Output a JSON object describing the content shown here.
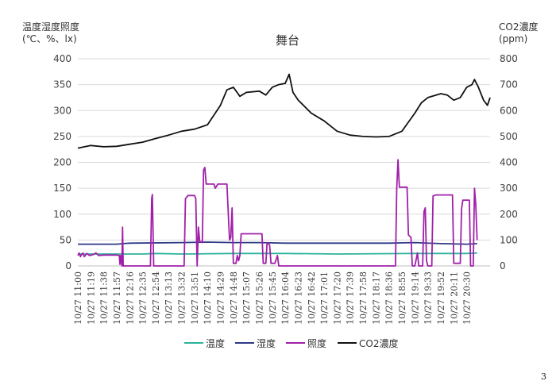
{
  "chart_data": {
    "type": "line",
    "title": "舞台",
    "left_axis_label_line1": "温度湿度照度",
    "left_axis_label_line2": "(℃、%、lx)",
    "right_axis_label_line1": "CO2濃度",
    "right_axis_label_line2": "(ppm)",
    "ylim_left": [
      0,
      400
    ],
    "ylim_right": [
      0,
      800
    ],
    "yticks_left": [
      0,
      50,
      100,
      150,
      200,
      250,
      300,
      350,
      400
    ],
    "yticks_right": [
      0,
      100,
      200,
      300,
      400,
      500,
      600,
      700,
      800
    ],
    "grid": "horizontal",
    "legend_position": "bottom",
    "x_categories": [
      "10/27 11:00",
      "10/27 11:19",
      "10/27 11:38",
      "10/27 11:57",
      "10/27 12:16",
      "10/27 12:35",
      "10/27 12:54",
      "10/27 13:13",
      "10/27 13:32",
      "10/27 13:51",
      "10/27 14:10",
      "10/27 14:29",
      "10/27 14:48",
      "10/27 15:07",
      "10/27 15:26",
      "10/27 15:45",
      "10/27 16:04",
      "10/27 16:23",
      "10/27 16:42",
      "10/27 17:01",
      "10/27 17:20",
      "10/27 17:39",
      "10/27 17:58",
      "10/27 18:17",
      "10/27 18:36",
      "10/27 18:55",
      "10/27 19:14",
      "10/27 19:33",
      "10/27 19:52",
      "10/27 20:11",
      "10/27 20:30"
    ],
    "series": [
      {
        "name": "温度",
        "color": "#2BB39A",
        "axis": "left",
        "points": [
          [
            0,
            23
          ],
          [
            5,
            23
          ],
          [
            6,
            24
          ],
          [
            8,
            23
          ],
          [
            12,
            24
          ],
          [
            16,
            24
          ],
          [
            20,
            23
          ],
          [
            26,
            24
          ],
          [
            30,
            24
          ],
          [
            30.8,
            25
          ]
        ]
      },
      {
        "name": "湿度",
        "color": "#2E3A87",
        "axis": "left",
        "points": [
          [
            0,
            42
          ],
          [
            3,
            42
          ],
          [
            3.5,
            43
          ],
          [
            4,
            44
          ],
          [
            8,
            45
          ],
          [
            10,
            46
          ],
          [
            12,
            45
          ],
          [
            14,
            45
          ],
          [
            16,
            44
          ],
          [
            20,
            44
          ],
          [
            24,
            44
          ],
          [
            26,
            45
          ],
          [
            28,
            43
          ],
          [
            30,
            42
          ],
          [
            30.8,
            43
          ]
        ]
      },
      {
        "name": "照度",
        "color": "#A020A8",
        "axis": "left",
        "points": [
          [
            0,
            20
          ],
          [
            0.1,
            25
          ],
          [
            0.2,
            18
          ],
          [
            0.3,
            22
          ],
          [
            0.4,
            25
          ],
          [
            0.5,
            18
          ],
          [
            0.7,
            24
          ],
          [
            0.9,
            20
          ],
          [
            1.2,
            22
          ],
          [
            1.4,
            25
          ],
          [
            1.6,
            20
          ],
          [
            2,
            21
          ],
          [
            3,
            21
          ],
          [
            3.2,
            20
          ],
          [
            3.25,
            3
          ],
          [
            3.3,
            20
          ],
          [
            3.4,
            0
          ],
          [
            3.45,
            75
          ],
          [
            3.5,
            0
          ],
          [
            3.6,
            0
          ],
          [
            5.6,
            0
          ],
          [
            5.7,
            130
          ],
          [
            5.75,
            138
          ],
          [
            5.85,
            0
          ],
          [
            6,
            0
          ],
          [
            8,
            0
          ],
          [
            8.2,
            0
          ],
          [
            8.3,
            130
          ],
          [
            8.5,
            136
          ],
          [
            9,
            136
          ],
          [
            9.1,
            130
          ],
          [
            9.2,
            0
          ],
          [
            9.3,
            75
          ],
          [
            9.4,
            48
          ],
          [
            9.6,
            45
          ],
          [
            9.7,
            185
          ],
          [
            9.8,
            190
          ],
          [
            9.9,
            158
          ],
          [
            10.5,
            158
          ],
          [
            10.6,
            150
          ],
          [
            10.8,
            158
          ],
          [
            11.5,
            158
          ],
          [
            11.7,
            50
          ],
          [
            11.8,
            55
          ],
          [
            11.9,
            112
          ],
          [
            12,
            5
          ],
          [
            12.2,
            5
          ],
          [
            12.3,
            20
          ],
          [
            12.4,
            10
          ],
          [
            12.5,
            20
          ],
          [
            12.6,
            62
          ],
          [
            13.3,
            62
          ],
          [
            14.2,
            62
          ],
          [
            14.3,
            5
          ],
          [
            14.5,
            5
          ],
          [
            14.6,
            45
          ],
          [
            14.8,
            40
          ],
          [
            14.9,
            5
          ],
          [
            15.2,
            5
          ],
          [
            15.4,
            20
          ],
          [
            15.5,
            0
          ],
          [
            16,
            0
          ],
          [
            20,
            0
          ],
          [
            24.5,
            0
          ],
          [
            24.6,
            150
          ],
          [
            24.7,
            205
          ],
          [
            24.8,
            152
          ],
          [
            25.4,
            152
          ],
          [
            25.5,
            60
          ],
          [
            25.7,
            55
          ],
          [
            25.8,
            0
          ],
          [
            26,
            0
          ],
          [
            26.2,
            25
          ],
          [
            26.3,
            0
          ],
          [
            26.6,
            0
          ],
          [
            26.7,
            105
          ],
          [
            26.8,
            112
          ],
          [
            26.9,
            10
          ],
          [
            27,
            0
          ],
          [
            27.3,
            0
          ],
          [
            27.4,
            135
          ],
          [
            27.6,
            137
          ],
          [
            28.9,
            137
          ],
          [
            29,
            5
          ],
          [
            29.5,
            5
          ],
          [
            29.6,
            110
          ],
          [
            29.7,
            127
          ],
          [
            30.2,
            127
          ],
          [
            30.3,
            0
          ],
          [
            30.5,
            0
          ],
          [
            30.6,
            150
          ],
          [
            30.7,
            118
          ],
          [
            30.8,
            50
          ]
        ]
      },
      {
        "name": "CO2濃度",
        "color": "#111111",
        "axis": "right",
        "points": [
          [
            0,
            455
          ],
          [
            1,
            465
          ],
          [
            2,
            460
          ],
          [
            3,
            462
          ],
          [
            4,
            470
          ],
          [
            5,
            478
          ],
          [
            6,
            492
          ],
          [
            7,
            505
          ],
          [
            8,
            520
          ],
          [
            9,
            528
          ],
          [
            10,
            545
          ],
          [
            11,
            620
          ],
          [
            11.5,
            680
          ],
          [
            12,
            690
          ],
          [
            12.5,
            655
          ],
          [
            13,
            670
          ],
          [
            14,
            675
          ],
          [
            14.5,
            660
          ],
          [
            15,
            690
          ],
          [
            15.5,
            700
          ],
          [
            16,
            705
          ],
          [
            16.3,
            740
          ],
          [
            16.6,
            670
          ],
          [
            17,
            640
          ],
          [
            18,
            590
          ],
          [
            19,
            560
          ],
          [
            20,
            520
          ],
          [
            21,
            505
          ],
          [
            22,
            500
          ],
          [
            23,
            498
          ],
          [
            24,
            500
          ],
          [
            25,
            520
          ],
          [
            26,
            590
          ],
          [
            26.5,
            630
          ],
          [
            27,
            650
          ],
          [
            28,
            665
          ],
          [
            28.5,
            660
          ],
          [
            29,
            640
          ],
          [
            29.5,
            650
          ],
          [
            30,
            690
          ],
          [
            30.4,
            700
          ],
          [
            30.6,
            720
          ],
          [
            30.9,
            690
          ],
          [
            31.3,
            640
          ],
          [
            31.6,
            620
          ],
          [
            31.8,
            650
          ]
        ]
      }
    ]
  },
  "legend_items": [
    {
      "label": "温度",
      "color": "#2BB39A"
    },
    {
      "label": "湿度",
      "color": "#2E3A87"
    },
    {
      "label": "照度",
      "color": "#A020A8"
    },
    {
      "label": "CO2濃度",
      "color": "#111111"
    }
  ],
  "page_number": "3"
}
